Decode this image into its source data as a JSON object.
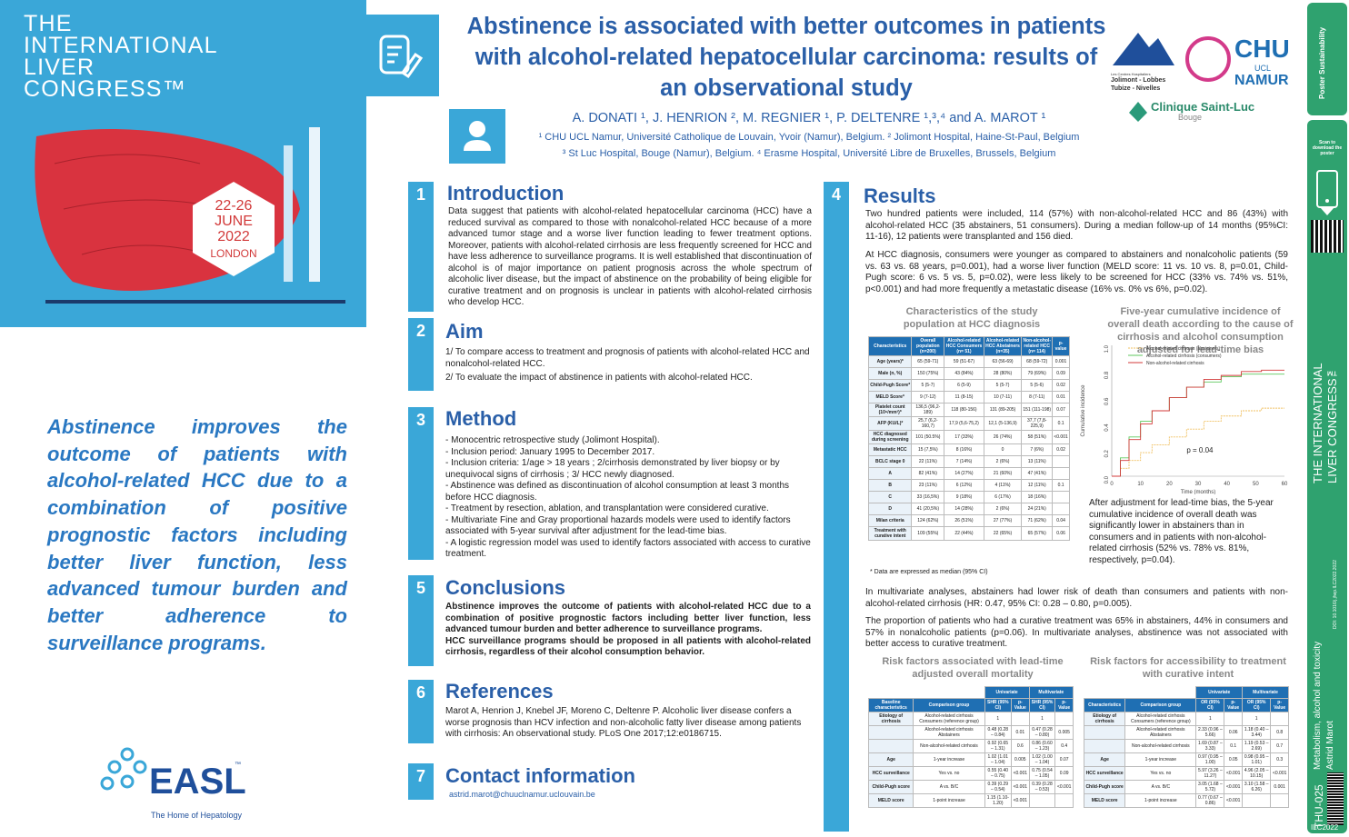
{
  "congress": {
    "line1": "THE",
    "line2": "INTERNATIONAL",
    "line3": "LIVER",
    "line4": "CONGRESS™",
    "dates": "22-26",
    "month": "JUNE",
    "year": "2022",
    "city": "LONDON"
  },
  "quote": "Abstinence improves the outcome of patients with alcohol-related HCC due to a combination of positive prognostic factors including better liver function, less advanced tumour burden and better adherence to surveillance programs.",
  "easl": {
    "name": "EASL",
    "tagline": "The Home of Hepatology",
    "tm": "™"
  },
  "title": "Abstinence is associated with better outcomes in patients with alcohol-related hepatocellular carcinoma: results of an observational study",
  "authors": "A. DONATI ¹, J. HENRION ², M. REGNIER ¹, P. DELTENRE ¹,³,⁴ and A. MAROT ¹",
  "affil1": "¹ CHU UCL Namur, Université Catholique de Louvain, Yvoir (Namur), Belgium.  ² Jolimont Hospital, Haine-St-Paul, Belgium",
  "affil2": "³ St Luc Hospital, Bouge (Namur), Belgium.  ⁴ Erasme Hospital, Université Libre de Bruxelles, Brussels, Belgium",
  "logos": {
    "jolimont": "Jolimont - Lobbes\nTubize - Nivelles",
    "jolimont_top": "Les Centres Hospitaliers",
    "chu": "CHU",
    "ucl": "UCL",
    "namur": "NAMUR",
    "stluc": "Clinique Saint-Luc",
    "bouge": "Bouge"
  },
  "sections": {
    "intro": {
      "num": "1",
      "head": "Introduction",
      "text": "Data suggest that patients with alcohol-related hepatocellular carcinoma (HCC) have a reduced survival as compared to those with nonalcohol-related HCC because of a more advanced tumor stage and a worse liver function leading to fewer treatment options. Moreover, patients with alcohol-related cirrhosis are less frequently screened for HCC and have less adherence to surveillance programs. It is well established that discontinuation of alcohol is of major importance on patient prognosis across the whole spectrum of alcoholic liver disease, but the impact of abstinence on the probability of being eligible for curative treatment and on prognosis is unclear in patients with alcohol-related cirrhosis who develop HCC."
    },
    "aim": {
      "num": "2",
      "head": "Aim",
      "l1": "1/ To compare access to treatment and prognosis of patients with alcohol-related HCC and nonalcohol-related HCC.",
      "l2": "2/ To evaluate the impact of abstinence in patients with alcohol-related HCC."
    },
    "method": {
      "num": "3",
      "head": "Method",
      "l1": "- Monocentric retrospective study (Jolimont Hospital).",
      "l2": "- Inclusion period: January 1995 to December 2017.",
      "l3": "- Inclusion criteria: 1/age > 18 years ; 2/cirrhosis  demonstrated by liver biopsy or by unequivocal signs of cirrhosis ; 3/ HCC newly diagnosed.",
      "l4": "- Abstinence was defined as discontinuation of alcohol consumption at least 3 months before HCC diagnosis.",
      "l5": "- Treatment by resection, ablation, and transplantation were considered curative.",
      "l6": "- Multivariate Fine and Gray proportional hazards models were used to identify factors associated with 5-year survival after adjustment for the lead-time bias.",
      "l7": "- A logistic regression model was used to identify factors associated with access to curative treatment."
    },
    "results": {
      "num": "4",
      "head": "Results",
      "p1": "Two hundred patients were included, 114 (57%) with non-alcohol-related HCC and 86 (43%) with alcohol-related HCC (35 abstainers, 51 consumers). During a median follow-up of 14 months (95%CI: 11-16), 12 patients were transplanted and 156 died.",
      "p2": "At HCC diagnosis, consumers were younger as compared to abstainers and nonalcoholic patients (59 vs. 63 vs. 68 years, p=0.001), had a worse liver function (MELD score: 11 vs. 10 vs. 8, p=0.01, Child-Pugh score: 6 vs. 5 vs. 5, p=0.02), were less likely to be screened for HCC (33% vs. 74% vs. 51%, p<0.001) and had more frequently a metastatic disease (16% vs. 0% vs 6%, p=0.02).",
      "p3": "In multivariate analyses, abstainers had lower risk of death than consumers and patients with non-alcohol-related cirrhosis (HR: 0.47, 95% CI: 0.28 – 0.80, p=0.005).",
      "p4": "The proportion of patients who had a curative treatment was 65% in abstainers, 44% in consumers and 57% in nonalcoholic patients (p=0.06). In multivariate analyses, abstinence was not associated with better access to curative treatment.",
      "t1title": "Characteristics of the study population at HCC diagnosis",
      "t1note": "* Data are expressed as median (95% CI)",
      "chartTitle": "Five-year cumulative incidence of overall death according to the cause of cirrhosis and alcohol consumption adjusted for lead-time bias",
      "chartText": "After adjustment for lead-time bias, the 5-year cumulative incidence of overall death was significantly lower in abstainers than in consumers and in patients with non-alcohol-related cirrhosis (52% vs. 78% vs. 81%, respectively, p=0.04).",
      "t2title": "Risk factors associated with lead-time adjusted overall mortality",
      "t3title": "Risk factors for accessibility to treatment with curative intent"
    },
    "conclusions": {
      "num": "5",
      "head": "Conclusions",
      "text": "Abstinence improves the outcome of patients with alcohol-related HCC due to a combination of positive prognostic factors including better liver function, less advanced tumour burden and better adherence to surveillance programs.",
      "text2": "HCC surveillance programs should be proposed in all patients with alcohol-related cirrhosis, regardless of their alcohol consumption behavior."
    },
    "refs": {
      "num": "6",
      "head": "References",
      "text": "Marot A, Henrion J, Knebel JF, Moreno C, Deltenre P. Alcoholic liver disease confers a worse prognosis than HCV infection and non-alcoholic fatty liver disease among patients with cirrhosis: An observational study. PLoS One 2017;12:e0186715."
    },
    "contact": {
      "num": "7",
      "head": "Contact information",
      "email": "astrid.marot@chuuclnamur.uclouvain.be"
    }
  },
  "table1": {
    "headers": [
      "Characteristics",
      "Overall population (n=200)",
      "Alcohol-related HCC Consumers (n= 51)",
      "Alcohol-related HCC Abstainers (n=35)",
      "Non-alcohol-related HCC (n= 114)",
      "p-value"
    ],
    "rows": [
      [
        "Age (years)*",
        "65 (59-71)",
        "59 (51-67)",
        "63 (56-69)",
        "68 (59-72)",
        "0.001"
      ],
      [
        "Male (n, %)",
        "150 (75%)",
        "43 (84%)",
        "28 (80%)",
        "79 (69%)",
        "0.09"
      ],
      [
        "Child-Pugh Score*",
        "5 (5-7)",
        "6 (5-9)",
        "5 (5-7)",
        "5 (5-6)",
        "0.02"
      ],
      [
        "MELD Score*",
        "9 (7-12)",
        "11 (8-15)",
        "10 (7-11)",
        "8 (7-11)",
        "0.01"
      ],
      [
        "Platelet count (10⁹/mm³)*",
        "136,5 (96,2-189)",
        "118 (80-156)",
        "131 (89-205)",
        "151 (111-198)",
        "0.07"
      ],
      [
        "AFP (KU/L)*",
        "25,7 (6,2-160,7)",
        "17,9 (5,6-75,2)",
        "12,1 (5-136,9)",
        "37,7 (7,8-225,9)",
        "0.1"
      ],
      [
        "HCC diagnosed during screening",
        "101 (50.5%)",
        "17 (33%)",
        "26 (74%)",
        "58 (51%)",
        "<0.001"
      ],
      [
        "Metastatic HCC",
        "15 (7,5%)",
        "8 (16%)",
        "0",
        "7 (6%)",
        "0.02"
      ],
      [
        "BCLC stage 0",
        "22 (11%)",
        "7 (14%)",
        "2 (6%)",
        "13 (11%)",
        ""
      ],
      [
        "A",
        "82 (41%)",
        "14 (27%)",
        "21 (60%)",
        "47 (41%)",
        ""
      ],
      [
        "B",
        "23 (11%)",
        "6 (12%)",
        "4 (11%)",
        "12 (11%)",
        "0.1"
      ],
      [
        "C",
        "33 (16,5%)",
        "9 (18%)",
        "6 (17%)",
        "18 (16%)",
        ""
      ],
      [
        "D",
        "41 (20,5%)",
        "14 (28%)",
        "2 (6%)",
        "24 (21%)",
        ""
      ],
      [
        "Milan criteria",
        "124 (62%)",
        "26 (51%)",
        "27 (77%)",
        "71 (62%)",
        "0.04"
      ],
      [
        "Treatment with curative intent",
        "109 (55%)",
        "22 (44%)",
        "22 (65%)",
        "65 (57%)",
        "0.06"
      ]
    ]
  },
  "table2": {
    "g1": "Univariate",
    "g2": "Multivariate",
    "headers": [
      "Baseline characteristics",
      "Comparison group",
      "SHR (95% CI)",
      "p-Value",
      "SHR (95% CI)",
      "p-Value"
    ],
    "rows": [
      [
        "Etiology of cirrhosis",
        "Alcohol-related cirrhosis Consumers (reference group)",
        "1",
        "",
        "1",
        ""
      ],
      [
        "",
        "Alcohol-related cirrhosis Abstainers",
        "0.48 (0.28 – 0.84)",
        "0.01",
        "0.47 (0.28 – 0.80)",
        "0.005"
      ],
      [
        "",
        "Non-alcohol-related cirrhosis",
        "0.92 (0.65 – 1.31)",
        "0.6",
        "0.86 (0.60 – 1.23)",
        "0.4"
      ],
      [
        "Age",
        "1-year increase",
        "1.02 (1.01 – 1.04)",
        "0.005",
        "1.02 (1.00 – 1.04)",
        "0.07"
      ],
      [
        "HCC surveillance",
        "Yes vs. no",
        "0.55 (0.40 – 0.75)",
        "<0.001",
        "0.75 (0.54 – 1.05)",
        "0.09"
      ],
      [
        "Child-Pugh score",
        "A vs. B/C",
        "0.39 (0.29 – 0.54)",
        "<0.001",
        "0.39 (0.28 – 0.53)",
        "<0.001"
      ],
      [
        "MELD score",
        "1-point increase",
        "1.15 (1.10-1.20)",
        "<0.001",
        "",
        ""
      ]
    ]
  },
  "table3": {
    "g1": "Univariate",
    "g2": "Multivariate",
    "headers": [
      "Characteristics",
      "Comparison group",
      "OR (95% CI)",
      "p-Value",
      "OR (95% CI)",
      "p-Value"
    ],
    "rows": [
      [
        "Etiology of cirrhosis",
        "Alcohol-related cirrhosis Consumers (reference group)",
        "1",
        "",
        "1",
        ""
      ],
      [
        "",
        "Alcohol-related cirrhosis Abstainers",
        "2.33 (0.96 – 5.66)",
        "0.06",
        "1.18 (0.40 – 3.44)",
        "0.8"
      ],
      [
        "",
        "Non-alcohol-related cirrhosis",
        "1.69 (0.87 – 3.33)",
        "0.1",
        "1.19 (0.53 – 2.69)",
        "0.7"
      ],
      [
        "Age",
        "1-year increase",
        "0.97 (0.95 – 1.00)",
        "0.05",
        "0.98 (0.95 – 1.01)",
        "0.3"
      ],
      [
        "HCC surveillance",
        "Yes vs. no",
        "5.97 (3.26 – 11.27)",
        "<0.001",
        "4.96 (2.05 – 10.15)",
        "<0.001"
      ],
      [
        "Child-Pugh score",
        "A vs. B/C",
        "3.05 (1.68 – 5.72)",
        "<0.001",
        "3.10 (1.58 – 6.26)",
        "0.001"
      ],
      [
        "MELD score",
        "1-point increase",
        "0.77 (0.67 – 0.86)",
        "<0.001",
        "",
        ""
      ]
    ]
  },
  "chart_data": {
    "type": "line",
    "xlabel": "Time (months)",
    "ylabel": "Cumulative incidence",
    "xlim": [
      0,
      60
    ],
    "ylim": [
      0,
      1
    ],
    "xticks": [
      "0",
      "10",
      "20",
      "30",
      "40",
      "50",
      "60"
    ],
    "yticks": [
      "0.0",
      "0.2",
      "0.4",
      "0.6",
      "0.8",
      "1.0"
    ],
    "annotation": "p = 0.04",
    "series": [
      {
        "name": "Alcohol-related cirrhosis (abstainers)",
        "color": "#f0c060",
        "x": [
          0,
          3,
          6,
          10,
          14,
          20,
          26,
          32,
          38,
          45,
          52,
          60
        ],
        "y": [
          0,
          0.06,
          0.12,
          0.18,
          0.24,
          0.3,
          0.36,
          0.42,
          0.46,
          0.5,
          0.52,
          0.52
        ]
      },
      {
        "name": "Alcohol-related cirrhosis (consumers)",
        "color": "#5fc95f",
        "x": [
          0,
          3,
          6,
          10,
          14,
          20,
          26,
          32,
          38,
          45,
          52,
          60
        ],
        "y": [
          0,
          0.14,
          0.3,
          0.42,
          0.5,
          0.6,
          0.68,
          0.72,
          0.76,
          0.78,
          0.78,
          0.78
        ]
      },
      {
        "name": "Non-alcohol-related cirrhosis",
        "color": "#d33a3a",
        "x": [
          0,
          3,
          6,
          10,
          14,
          20,
          26,
          32,
          38,
          45,
          52,
          60
        ],
        "y": [
          0,
          0.12,
          0.28,
          0.4,
          0.5,
          0.6,
          0.68,
          0.74,
          0.77,
          0.8,
          0.81,
          0.81
        ]
      }
    ]
  },
  "rightbar": {
    "scan": "Scan to download the poster",
    "topic": "Metabolism, alcohol and toxicity",
    "author": "Astrid Marot",
    "code": "THU-025",
    "ilc": "ILC2022",
    "congress1": "THE INTERNATIONAL",
    "congress2": "LIVER CONGRESS™",
    "doi": "DOI: 10.1016/j.jhep.ILC2022.2022",
    "brand": "Poster Sustainability"
  }
}
